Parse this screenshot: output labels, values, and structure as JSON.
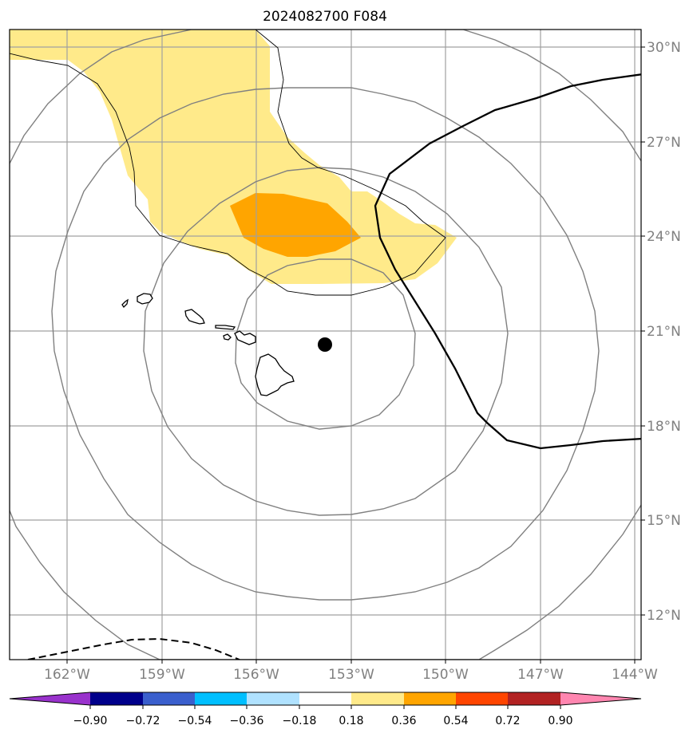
{
  "title": "2024082700 F084",
  "colors": {
    "field_low": "#ffea8a",
    "field_high": "#ffa500",
    "graticule": "#a0a0a0",
    "range_rings": "#808080",
    "coast": "#000000",
    "track": "#000000",
    "storm_dot": "#000000"
  },
  "latitude_labels": [
    "30°N",
    "27°N",
    "24°N",
    "21°N",
    "18°N",
    "15°N",
    "12°N"
  ],
  "longitude_labels": [
    "162°W",
    "159°W",
    "156°W",
    "153°W",
    "150°W",
    "147°W",
    "144°W"
  ],
  "colorbar": {
    "colors": [
      "#9932cc",
      "#00008b",
      "#3a5fcd",
      "#00bfff",
      "#b0e2ff",
      "#ffffff",
      "#ffea8a",
      "#ffa500",
      "#ff4500",
      "#b22222",
      "#ff86b0"
    ],
    "labels": [
      "−0.90",
      "−0.72",
      "−0.54",
      "−0.36",
      "−0.18",
      "0.18",
      "0.36",
      "0.54",
      "0.72",
      "0.90"
    ]
  }
}
